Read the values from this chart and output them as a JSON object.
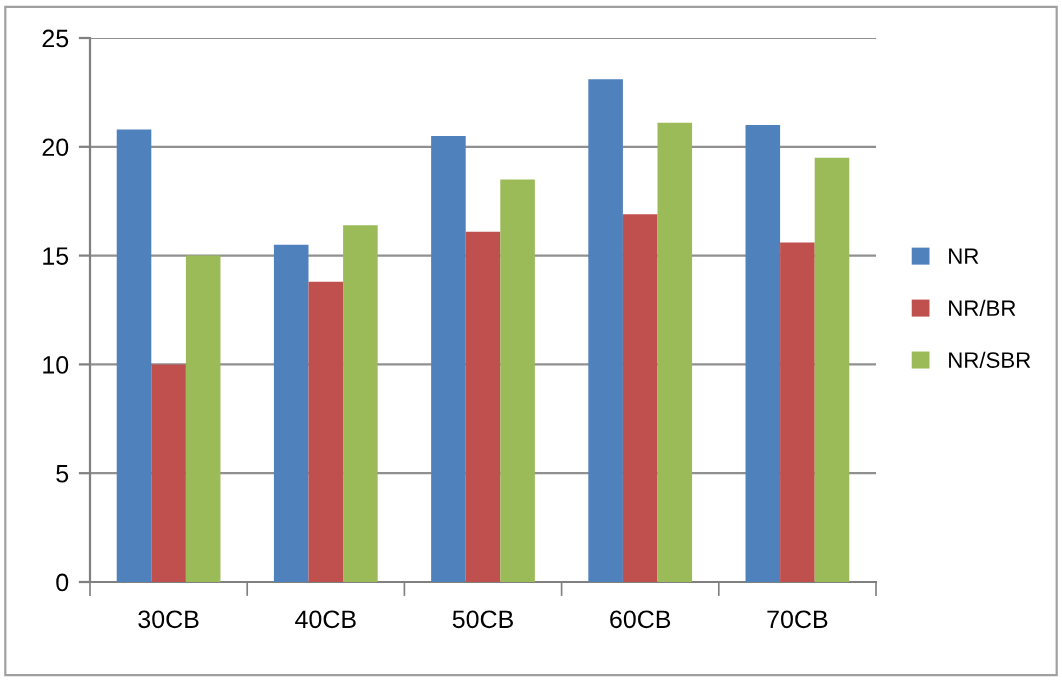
{
  "chart_data": {
    "type": "bar",
    "categories": [
      "30CB",
      "40CB",
      "50CB",
      "60CB",
      "70CB"
    ],
    "series": [
      {
        "name": "NR",
        "color": "#4f81bd",
        "values": [
          20.8,
          15.5,
          20.5,
          23.1,
          21.0
        ]
      },
      {
        "name": "NR/BR",
        "color": "#c0504d",
        "values": [
          10.0,
          13.8,
          16.1,
          16.9,
          15.6
        ]
      },
      {
        "name": "NR/SBR",
        "color": "#9bbb59",
        "values": [
          15.0,
          16.4,
          18.5,
          21.1,
          19.5
        ]
      }
    ],
    "ylim": [
      0,
      25
    ],
    "yticks": [
      0,
      5,
      10,
      15,
      20,
      25
    ],
    "grid": "y",
    "legend": "right"
  }
}
